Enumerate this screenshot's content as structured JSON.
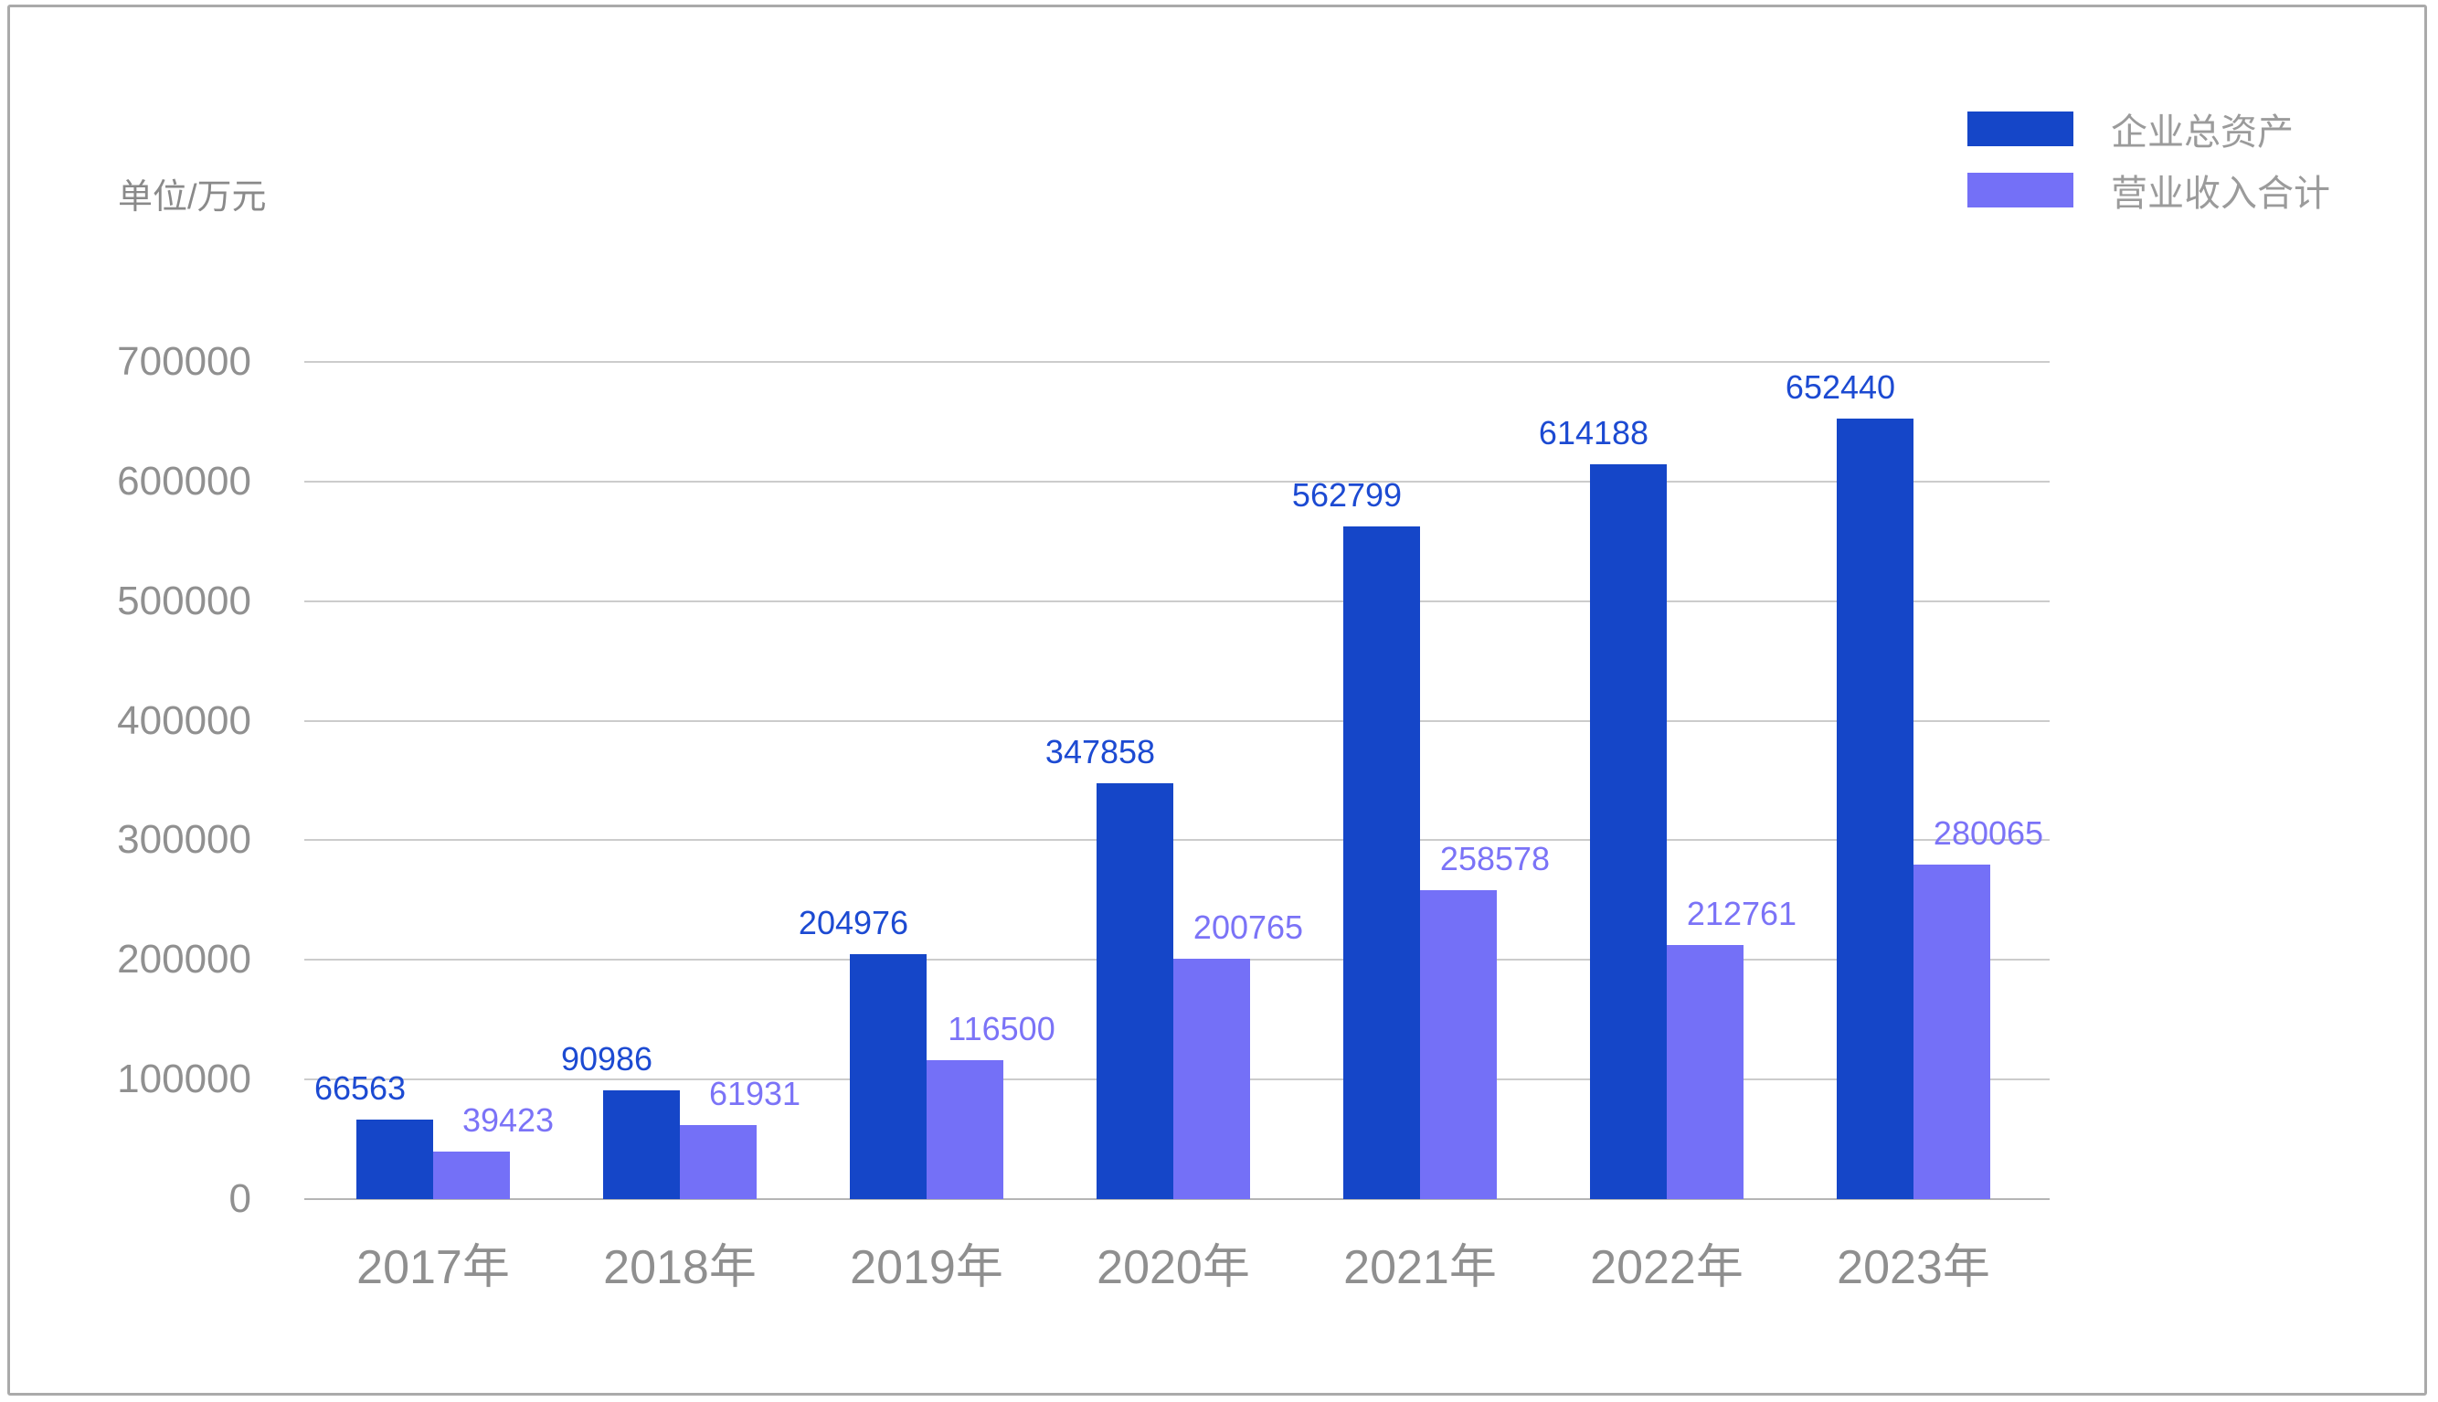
{
  "page": {
    "unit_label": "单位/万元"
  },
  "legend": {
    "items": [
      {
        "label": "企业总资产",
        "color": "#1546C8"
      },
      {
        "label": "营业收入合计",
        "color": "#7470F7"
      }
    ]
  },
  "colors": {
    "series_total_assets": "#1546C8",
    "series_revenue": "#7470F7",
    "value_label_total_assets": "#1C4AD2",
    "value_label_revenue": "#7B73F7",
    "grid": "#CCCCCC",
    "axis_text": "#8F8F8F"
  },
  "chart_data": {
    "type": "bar",
    "categories": [
      "2017年",
      "2018年",
      "2019年",
      "2020年",
      "2021年",
      "2022年",
      "2023年"
    ],
    "series": [
      {
        "name": "企业总资产",
        "color": "#1546C8",
        "label_color": "#1C4AD2",
        "values": [
          66563,
          90986,
          204976,
          347858,
          562799,
          614188,
          652440
        ]
      },
      {
        "name": "营业收入合计",
        "color": "#7470F7",
        "label_color": "#7B73F7",
        "values": [
          39423,
          61931,
          116500,
          200765,
          258578,
          212761,
          280065
        ]
      }
    ],
    "title": "",
    "xlabel": "",
    "ylabel": "单位/万元",
    "ylim": [
      0,
      700000
    ],
    "yticks": [
      0,
      100000,
      200000,
      300000,
      400000,
      500000,
      600000,
      700000
    ],
    "grid": true,
    "legend_position": "top-right",
    "value_labels_shown": true
  }
}
